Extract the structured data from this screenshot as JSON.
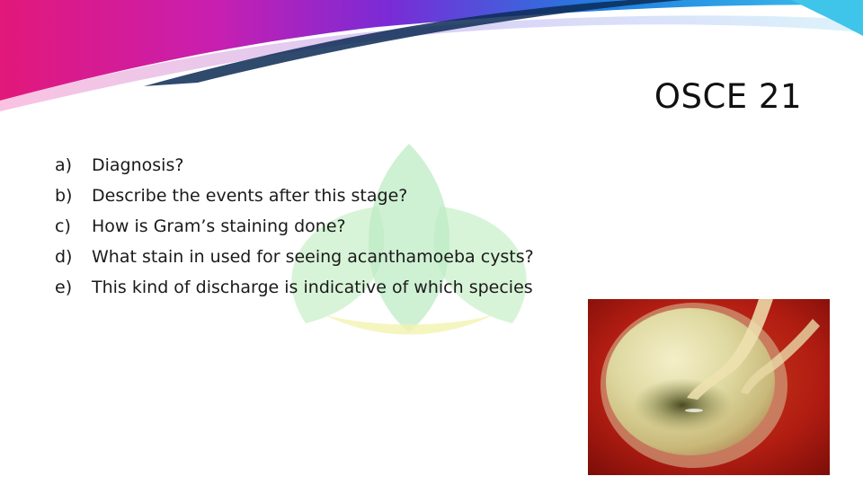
{
  "slide": {
    "title": "OSCE 21",
    "questions": [
      {
        "marker": "a)",
        "text": "Diagnosis?"
      },
      {
        "marker": "b)",
        "text": "Describe the events after this stage?"
      },
      {
        "marker": "c)",
        "text": "How is Gram’s staining done?"
      },
      {
        "marker": "d)",
        "text": "What stain in used for seeing acanthamoeba cysts?"
      },
      {
        "marker": "e)",
        "text": "This kind of discharge is indicative of which species"
      }
    ]
  },
  "colors": {
    "banner_magenta": "#e2187a",
    "banner_purple": "#7a2bd6",
    "banner_blue": "#1f7fe0",
    "banner_cyan": "#3fc4ea",
    "banner_dark": "#0c2a55",
    "watermark_green": "#b7eec0",
    "watermark_yellow": "#f3f3b0",
    "title_text": "#111111",
    "body_text": "#1a1a1a"
  }
}
